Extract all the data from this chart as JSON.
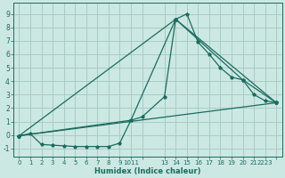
{
  "xlabel": "Humidex (Indice chaleur)",
  "bg_color": "#cce8e2",
  "grid_color": "#a8ccc6",
  "line_color": "#1a6b60",
  "xlim": [
    -0.5,
    23.5
  ],
  "ylim": [
    -1.6,
    9.8
  ],
  "yticks": [
    -1,
    0,
    1,
    2,
    3,
    4,
    5,
    6,
    7,
    8,
    9
  ],
  "xtick_positions": [
    0,
    1,
    2,
    3,
    4,
    5,
    6,
    7,
    8,
    9,
    10,
    11,
    13,
    14,
    15,
    16,
    17,
    18,
    19,
    20,
    21,
    22,
    23
  ],
  "xtick_labels": [
    "0",
    "1",
    "2",
    "3",
    "4",
    "5",
    "6",
    "7",
    "8",
    "9",
    "1011",
    "",
    "13",
    "14",
    "15",
    "16",
    "17",
    "18",
    "19",
    "20",
    "21",
    "2223",
    ""
  ],
  "series_main": {
    "x": [
      0,
      1,
      2,
      3,
      4,
      5,
      6,
      7,
      8,
      9,
      10,
      11,
      13,
      14,
      15,
      16,
      17,
      18,
      19,
      20,
      21,
      22,
      23
    ],
    "y": [
      -0.05,
      0.1,
      -0.7,
      -0.75,
      -0.8,
      -0.85,
      -0.85,
      -0.85,
      -0.85,
      -0.6,
      1.1,
      1.35,
      2.85,
      8.6,
      9.0,
      6.9,
      6.0,
      5.0,
      4.3,
      4.1,
      3.0,
      2.55,
      2.4
    ]
  },
  "series_envelope1": {
    "x": [
      0,
      10,
      14,
      20,
      23
    ],
    "y": [
      -0.05,
      1.1,
      8.6,
      4.1,
      2.4
    ]
  },
  "series_line1": {
    "x": [
      0,
      23
    ],
    "y": [
      -0.05,
      2.4
    ]
  },
  "series_line2": {
    "x": [
      0,
      14,
      23
    ],
    "y": [
      -0.05,
      8.6,
      2.4
    ]
  }
}
